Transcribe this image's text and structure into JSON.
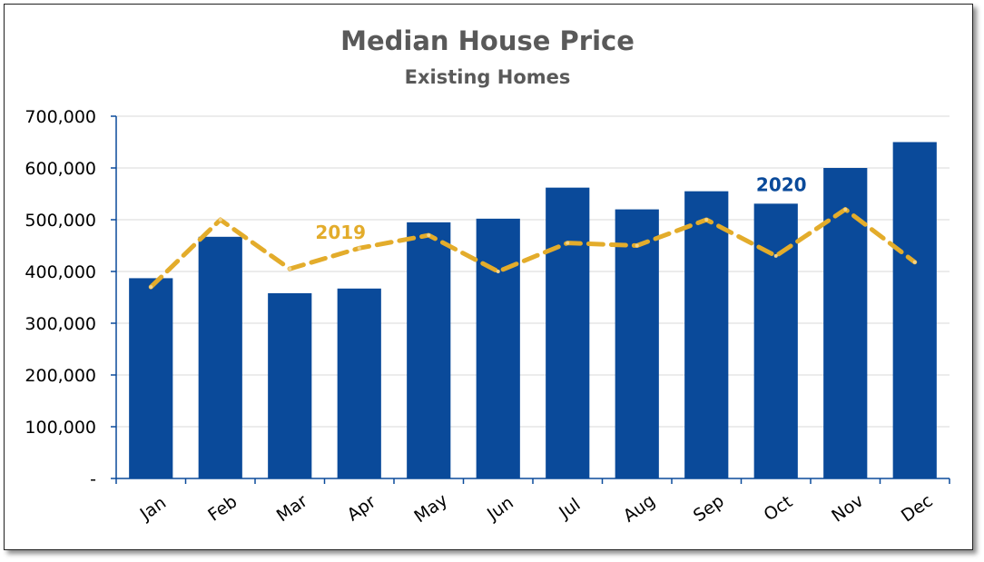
{
  "chart_data": {
    "type": "bar",
    "title": "Median House Price",
    "subtitle": "Existing Homes",
    "categories": [
      "Jan",
      "Feb",
      "Mar",
      "Apr",
      "May",
      "Jun",
      "Jul",
      "Aug",
      "Sep",
      "Oct",
      "Nov",
      "Dec"
    ],
    "series": [
      {
        "name": "2020",
        "type": "bar",
        "color": "#0a4a9a",
        "values": [
          387000,
          467000,
          358000,
          367000,
          495000,
          502000,
          562000,
          520000,
          555000,
          531000,
          600000,
          650000
        ]
      },
      {
        "name": "2019",
        "type": "line",
        "style": "dashed",
        "color": "#e3ac2b",
        "values": [
          370000,
          500000,
          405000,
          445000,
          470000,
          400000,
          455000,
          450000,
          500000,
          430000,
          520000,
          418000
        ]
      }
    ],
    "ylim": [
      0,
      700000
    ],
    "yticks": [
      0,
      100000,
      200000,
      300000,
      400000,
      500000,
      600000,
      700000
    ],
    "ytick_labels": [
      "-",
      "100,000",
      "200,000",
      "300,000",
      "400,000",
      "500,000",
      "600,000",
      "700,000"
    ],
    "grid": true,
    "xlabel": "",
    "ylabel": ""
  }
}
